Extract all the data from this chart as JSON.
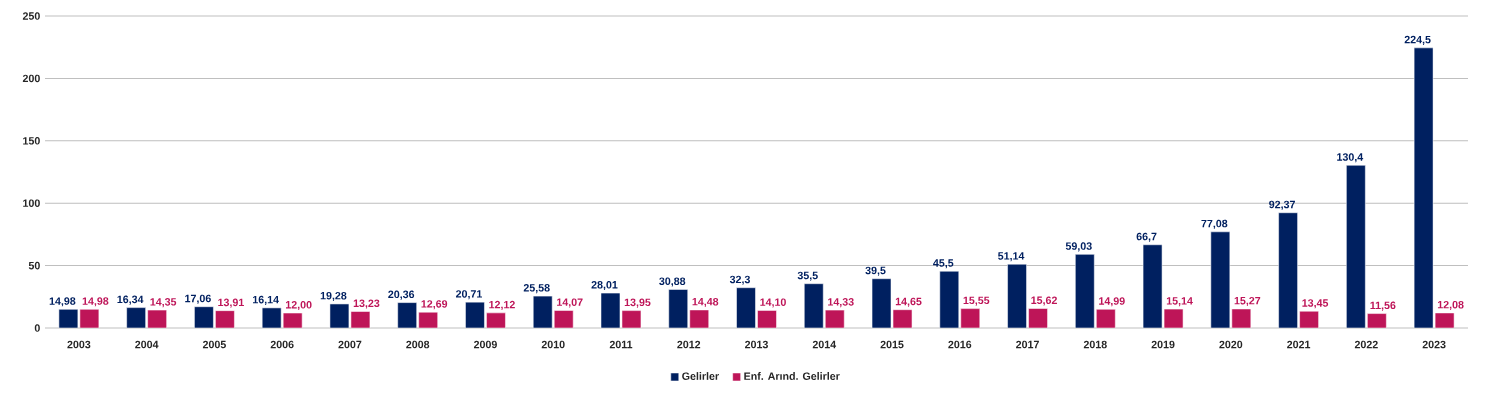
{
  "chart_data": {
    "type": "bar",
    "categories": [
      "2003",
      "2004",
      "2005",
      "2006",
      "2007",
      "2008",
      "2009",
      "2010",
      "2011",
      "2012",
      "2013",
      "2014",
      "2015",
      "2016",
      "2017",
      "2018",
      "2019",
      "2020",
      "2021",
      "2022",
      "2023"
    ],
    "series": [
      {
        "name": "Gelirler",
        "color": "#002060",
        "values": [
          14.98,
          16.34,
          17.06,
          16.14,
          19.28,
          20.36,
          20.71,
          25.58,
          28.01,
          30.88,
          32.3,
          35.5,
          39.5,
          45.5,
          51.14,
          59.03,
          66.7,
          77.08,
          92.37,
          130.4,
          224.5
        ],
        "value_labels": [
          "14,98",
          "16,34",
          "17,06",
          "16,14",
          "19,28",
          "20,36",
          "20,71",
          "25,58",
          "28,01",
          "30,88",
          "32,3",
          "35,5",
          "39,5",
          "45,5",
          "51,14",
          "59,03",
          "66,7",
          "77,08",
          "92,37",
          "130,4",
          "224,5"
        ]
      },
      {
        "name": "Enf. Arınd. Gelirler",
        "color": "#be1558",
        "values": [
          14.98,
          14.35,
          13.91,
          12.0,
          13.23,
          12.69,
          12.12,
          14.07,
          13.95,
          14.48,
          14.1,
          14.33,
          14.65,
          15.55,
          15.62,
          14.99,
          15.14,
          15.27,
          13.45,
          11.56,
          12.08
        ],
        "value_labels": [
          "14,98",
          "14,35",
          "13,91",
          "12,00",
          "13,23",
          "12,69",
          "12,12",
          "14,07",
          "13,95",
          "14,48",
          "14,10",
          "14,33",
          "14,65",
          "15,55",
          "15,62",
          "14,99",
          "15,14",
          "15,27",
          "13,45",
          "11,56",
          "12,08"
        ]
      }
    ],
    "ylim": [
      0,
      250
    ],
    "yticks": [
      0,
      50,
      100,
      150,
      200,
      250
    ],
    "grid": "y",
    "legend": "bottom"
  }
}
